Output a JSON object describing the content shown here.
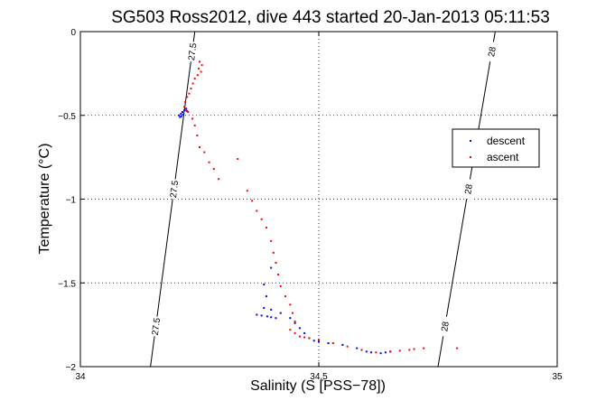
{
  "chart_data": {
    "type": "scatter",
    "title": "SG503 Ross2012, dive 443 started 20-Jan-2013 05:11:53",
    "xlabel": "Salinity (S [PSS−78])",
    "ylabel": "Temperature (°C)",
    "xlim": [
      34,
      35
    ],
    "ylim": [
      -2,
      0
    ],
    "xticks": [
      34,
      34.5,
      35
    ],
    "xtick_labels": [
      "34",
      "34.5",
      "35"
    ],
    "yticks": [
      0,
      -0.5,
      -1,
      -1.5,
      -2
    ],
    "ytick_labels": [
      "0",
      "−0.5",
      "−1",
      "−1.5",
      "−2"
    ],
    "grid": true,
    "legend_position": "right",
    "colors": {
      "descent": "#0000ff",
      "ascent": "#ff0000",
      "isopycnal": "#000000"
    },
    "isopycnals": [
      {
        "labels": [
          "27.5",
          "27.5",
          "27.5"
        ],
        "points": [
          [
            34.147,
            -2.0
          ],
          [
            34.24,
            0.0
          ]
        ]
      },
      {
        "labels": [
          "28",
          "28",
          "28"
        ],
        "points": [
          [
            34.75,
            -2.0
          ],
          [
            34.87,
            0.0
          ]
        ]
      }
    ],
    "series": [
      {
        "name": "descent",
        "color": "#0000ff",
        "marker": ".",
        "points": [
          [
            34.207,
            -0.5
          ],
          [
            34.211,
            -0.49
          ],
          [
            34.214,
            -0.48
          ],
          [
            34.218,
            -0.47
          ],
          [
            34.222,
            -0.46
          ],
          [
            34.209,
            -0.51
          ],
          [
            34.216,
            -0.495
          ],
          [
            34.224,
            -0.475
          ],
          [
            34.212,
            -0.505
          ],
          [
            34.4,
            -1.41
          ],
          [
            34.385,
            -1.51
          ],
          [
            34.39,
            -1.58
          ],
          [
            34.37,
            -1.69
          ],
          [
            34.38,
            -1.695
          ],
          [
            34.392,
            -1.7
          ],
          [
            34.4,
            -1.705
          ],
          [
            34.41,
            -1.71
          ],
          [
            34.385,
            -1.65
          ],
          [
            34.4,
            -1.66
          ],
          [
            34.42,
            -1.68
          ],
          [
            34.44,
            -1.71
          ],
          [
            34.45,
            -1.74
          ],
          [
            34.46,
            -1.77
          ],
          [
            34.47,
            -1.8
          ],
          [
            34.48,
            -1.83
          ],
          [
            34.49,
            -1.845
          ],
          [
            34.5,
            -1.85
          ],
          [
            34.52,
            -1.86
          ],
          [
            34.55,
            -1.87
          ],
          [
            34.58,
            -1.89
          ],
          [
            34.6,
            -1.91
          ],
          [
            34.61,
            -1.915
          ],
          [
            34.63,
            -1.92
          ],
          [
            34.64,
            -1.915
          ],
          [
            34.65,
            -1.91
          ]
        ]
      },
      {
        "name": "ascent",
        "color": "#ff0000",
        "marker": ".",
        "points": [
          [
            34.25,
            -0.18
          ],
          [
            34.255,
            -0.2
          ],
          [
            34.248,
            -0.22
          ],
          [
            34.253,
            -0.24
          ],
          [
            34.246,
            -0.26
          ],
          [
            34.24,
            -0.28
          ],
          [
            34.236,
            -0.31
          ],
          [
            34.232,
            -0.34
          ],
          [
            34.228,
            -0.37
          ],
          [
            34.224,
            -0.39
          ],
          [
            34.22,
            -0.42
          ],
          [
            34.218,
            -0.45
          ],
          [
            34.222,
            -0.47
          ],
          [
            34.226,
            -0.48
          ],
          [
            34.235,
            -0.52
          ],
          [
            34.24,
            -0.56
          ],
          [
            34.245,
            -0.62
          ],
          [
            34.25,
            -0.69
          ],
          [
            34.26,
            -0.72
          ],
          [
            34.27,
            -0.78
          ],
          [
            34.28,
            -0.82
          ],
          [
            34.29,
            -0.88
          ],
          [
            34.33,
            -0.76
          ],
          [
            34.35,
            -0.95
          ],
          [
            34.36,
            -1.01
          ],
          [
            34.37,
            -1.07
          ],
          [
            34.38,
            -1.12
          ],
          [
            34.39,
            -1.17
          ],
          [
            34.4,
            -1.25
          ],
          [
            34.405,
            -1.32
          ],
          [
            34.41,
            -1.38
          ],
          [
            34.415,
            -1.45
          ],
          [
            34.42,
            -1.52
          ],
          [
            34.43,
            -1.58
          ],
          [
            34.44,
            -1.63
          ],
          [
            34.445,
            -1.68
          ],
          [
            34.45,
            -1.73
          ],
          [
            34.44,
            -1.78
          ],
          [
            34.45,
            -1.8
          ],
          [
            34.46,
            -1.82
          ],
          [
            34.47,
            -1.825
          ],
          [
            34.48,
            -1.83
          ],
          [
            34.5,
            -1.84
          ],
          [
            34.53,
            -1.86
          ],
          [
            34.56,
            -1.88
          ],
          [
            34.59,
            -1.9
          ],
          [
            34.62,
            -1.915
          ],
          [
            34.65,
            -1.91
          ],
          [
            34.67,
            -1.905
          ],
          [
            34.69,
            -1.9
          ],
          [
            34.7,
            -1.895
          ],
          [
            34.72,
            -1.89
          ],
          [
            34.79,
            -1.89
          ]
        ]
      }
    ]
  }
}
